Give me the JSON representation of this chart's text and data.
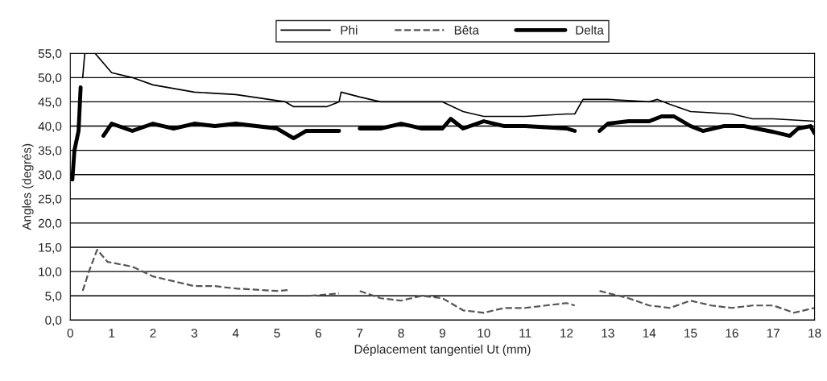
{
  "chart_data": {
    "type": "line",
    "xlabel": "Déplacement tangentiel Ut (mm)",
    "ylabel": "Angles (degrés)",
    "xlim": [
      0,
      18
    ],
    "xticks": [
      0,
      1,
      2,
      3,
      4,
      5,
      6,
      7,
      8,
      9,
      10,
      11,
      12,
      13,
      14,
      15,
      16,
      17,
      18
    ],
    "ylim": [
      0,
      55
    ],
    "yticks": [
      {
        "value": 0,
        "label": "0,0"
      },
      {
        "value": 5,
        "label": "5,0"
      },
      {
        "value": 10,
        "label": "10,0"
      },
      {
        "value": 15,
        "label": "15,0"
      },
      {
        "value": 20,
        "label": "20,0"
      },
      {
        "value": 25,
        "label": "25,0"
      },
      {
        "value": 30,
        "label": "30,0"
      },
      {
        "value": 35,
        "label": "35,0"
      },
      {
        "value": 40,
        "label": "40,0"
      },
      {
        "value": 45,
        "label": "45,0"
      },
      {
        "value": 50,
        "label": "50,0"
      },
      {
        "value": 55,
        "label": "55,0"
      }
    ],
    "grid": "y",
    "legend": "top",
    "marker": "none",
    "series": [
      {
        "name": "Phi",
        "color": "#000000",
        "line_style": "solid",
        "x": [
          0.3,
          0.35,
          0.6,
          0.9,
          1.0,
          1.5,
          2.0,
          3.0,
          4.0,
          4.4,
          5.2,
          5.4,
          6.2,
          6.5,
          6.55,
          7.0,
          7.5,
          8.0,
          9.0,
          9.5,
          10.0,
          11.0,
          12.0,
          12.2,
          12.4,
          13.0,
          14.0,
          14.2,
          14.5,
          15.0,
          16.0,
          16.5,
          17.0,
          18.0
        ],
        "values": [
          50,
          55,
          55,
          52,
          51,
          50,
          48.5,
          47,
          46.5,
          46,
          45,
          44,
          44,
          45,
          47,
          46,
          45,
          45,
          45,
          43,
          42,
          42,
          42.5,
          42.5,
          45.5,
          45.5,
          45,
          45.5,
          44.5,
          43,
          42.5,
          41.5,
          41.5,
          41
        ]
      },
      {
        "name": "Bêta",
        "color": "#555555",
        "line_style": "dashed",
        "x": [
          0.3,
          0.45,
          0.65,
          0.9,
          1.5,
          2.0,
          2.5,
          3.0,
          3.5,
          4.0,
          5.0,
          5.3,
          5.5,
          5.8,
          6.5,
          6.7,
          7.0,
          7.5,
          8.0,
          8.5,
          9.0,
          9.5,
          10.0,
          10.5,
          11.0,
          11.5,
          12.0,
          12.2,
          12.5,
          12.8,
          13.5,
          14.0,
          14.5,
          15.0,
          15.5,
          16.0,
          16.5,
          17.0,
          17.5,
          18.0
        ],
        "values": [
          6,
          10,
          14.5,
          12,
          11,
          9,
          8,
          7,
          7,
          6.5,
          6,
          6.2,
          null,
          5,
          5.5,
          null,
          6,
          4.5,
          4,
          5,
          4.5,
          2,
          1.5,
          2.5,
          2.5,
          3,
          3.5,
          3,
          null,
          6,
          4.5,
          3,
          2.5,
          4,
          3,
          2.5,
          3,
          3,
          1.5,
          2.5
        ]
      },
      {
        "name": "Delta",
        "color": "#000000",
        "line_style": "solid",
        "x": [
          0.05,
          0.1,
          0.2,
          0.25,
          0.5,
          0.8,
          1.0,
          1.5,
          2.0,
          2.5,
          3.0,
          3.5,
          4.0,
          4.5,
          5.0,
          5.4,
          5.7,
          6.0,
          6.5,
          6.8,
          7.0,
          7.5,
          8.0,
          8.5,
          9.0,
          9.2,
          9.5,
          10.0,
          10.5,
          11.0,
          12.0,
          12.2,
          12.5,
          12.8,
          13.0,
          13.5,
          14.0,
          14.3,
          14.6,
          15.0,
          15.3,
          15.8,
          16.3,
          17.0,
          17.4,
          17.6,
          17.9,
          18.0
        ],
        "values": [
          29,
          35,
          39,
          48,
          null,
          38,
          40.5,
          39,
          40.5,
          39.5,
          40.5,
          40,
          40.5,
          40,
          39.5,
          37.5,
          39,
          39,
          39,
          null,
          39.5,
          39.5,
          40.5,
          39.5,
          39.5,
          41.5,
          39.5,
          41,
          40,
          40,
          39.5,
          39,
          null,
          39,
          40.5,
          41,
          41,
          42,
          42,
          40,
          39,
          40,
          40,
          38.8,
          38,
          39.5,
          40,
          38.5
        ]
      }
    ]
  }
}
